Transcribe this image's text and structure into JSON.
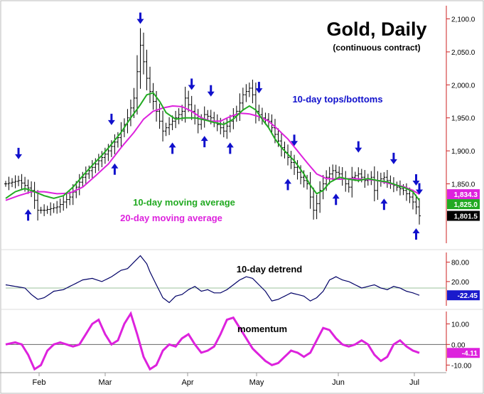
{
  "chart_data": {
    "type": "line",
    "title": "Gold, Daily",
    "subtitle": "(continuous contract)",
    "x_tick_labels": [
      "Feb",
      "Mar",
      "Apr",
      "May",
      "Jun",
      "Jul"
    ],
    "annotations": {
      "tops_bottoms": "10-day tops/bottoms",
      "ma10_label": "10-day moving average",
      "ma20_label": "20-day moving average",
      "detrend_label": "10-day detrend",
      "momentum_label": "momentum"
    },
    "colors": {
      "price_bars": "#000000",
      "ma10": "#22aa22",
      "ma20": "#dd22dd",
      "arrows": "#1010cc",
      "detrend": "#000066",
      "momentum": "#dd22dd",
      "axis": "#cc2222",
      "zero_line": "#9bc29b"
    },
    "price_panel": {
      "ylim": [
        1760,
        2120
      ],
      "y_ticks": [
        {
          "value": 2100,
          "label": "2,100.0"
        },
        {
          "value": 2050,
          "label": "2,050.0"
        },
        {
          "value": 2000,
          "label": "2,000.0"
        },
        {
          "value": 1950,
          "label": "1,950.0"
        },
        {
          "value": 1900,
          "label": "1,900.0"
        },
        {
          "value": 1850,
          "label": "1,850.0"
        }
      ],
      "value_tags": [
        {
          "value": 1834.3,
          "label": "1,834.3",
          "color": "#dd22dd"
        },
        {
          "value": 1825.0,
          "label": "1,825.0",
          "color": "#22aa22"
        },
        {
          "value": 1801.5,
          "label": "1,801.5",
          "color": "#000000"
        }
      ],
      "close_points": [
        [
          0,
          1850
        ],
        [
          4,
          1855
        ],
        [
          8,
          1840
        ],
        [
          10,
          1810
        ],
        [
          12,
          1810
        ],
        [
          16,
          1815
        ],
        [
          20,
          1830
        ],
        [
          24,
          1860
        ],
        [
          28,
          1880
        ],
        [
          32,
          1900
        ],
        [
          35,
          1920
        ],
        [
          38,
          1950
        ],
        [
          40,
          1980
        ],
        [
          42,
          2060
        ],
        [
          44,
          2010
        ],
        [
          45,
          1990
        ],
        [
          47,
          1960
        ],
        [
          49,
          1930
        ],
        [
          51,
          1940
        ],
        [
          53,
          1950
        ],
        [
          55,
          1960
        ],
        [
          56,
          1980
        ],
        [
          58,
          1960
        ],
        [
          60,
          1940
        ],
        [
          62,
          1955
        ],
        [
          64,
          1950
        ],
        [
          66,
          1940
        ],
        [
          68,
          1930
        ],
        [
          70,
          1945
        ],
        [
          72,
          1960
        ],
        [
          74,
          1985
        ],
        [
          76,
          1995
        ],
        [
          77,
          1985
        ],
        [
          78,
          1960
        ],
        [
          80,
          1950
        ],
        [
          82,
          1945
        ],
        [
          84,
          1925
        ],
        [
          86,
          1905
        ],
        [
          88,
          1890
        ],
        [
          90,
          1875
        ],
        [
          92,
          1860
        ],
        [
          94,
          1850
        ],
        [
          95,
          1830
        ],
        [
          96,
          1810
        ],
        [
          97,
          1820
        ],
        [
          98,
          1840
        ],
        [
          100,
          1860
        ],
        [
          102,
          1870
        ],
        [
          104,
          1865
        ],
        [
          106,
          1850
        ],
        [
          107,
          1845
        ],
        [
          108,
          1860
        ],
        [
          110,
          1865
        ],
        [
          112,
          1855
        ],
        [
          114,
          1860
        ],
        [
          115,
          1840
        ],
        [
          116,
          1855
        ],
        [
          118,
          1860
        ],
        [
          120,
          1850
        ],
        [
          122,
          1845
        ],
        [
          124,
          1840
        ],
        [
          126,
          1830
        ],
        [
          128,
          1815
        ],
        [
          129,
          1801.5
        ]
      ],
      "ma10_points": [
        [
          0,
          1828
        ],
        [
          3,
          1838
        ],
        [
          6,
          1843
        ],
        [
          9,
          1838
        ],
        [
          12,
          1832
        ],
        [
          15,
          1828
        ],
        [
          18,
          1832
        ],
        [
          21,
          1845
        ],
        [
          24,
          1862
        ],
        [
          27,
          1878
        ],
        [
          30,
          1893
        ],
        [
          33,
          1910
        ],
        [
          36,
          1928
        ],
        [
          39,
          1950
        ],
        [
          42,
          1970
        ],
        [
          44,
          1985
        ],
        [
          46,
          1988
        ],
        [
          48,
          1975
        ],
        [
          50,
          1958
        ],
        [
          53,
          1948
        ],
        [
          56,
          1950
        ],
        [
          59,
          1950
        ],
        [
          62,
          1947
        ],
        [
          65,
          1943
        ],
        [
          68,
          1940
        ],
        [
          71,
          1948
        ],
        [
          74,
          1962
        ],
        [
          76,
          1968
        ],
        [
          78,
          1962
        ],
        [
          80,
          1948
        ],
        [
          82,
          1935
        ],
        [
          84,
          1918
        ],
        [
          86,
          1905
        ],
        [
          88,
          1895
        ],
        [
          90,
          1885
        ],
        [
          93,
          1865
        ],
        [
          95,
          1848
        ],
        [
          97,
          1835
        ],
        [
          99,
          1840
        ],
        [
          101,
          1852
        ],
        [
          104,
          1860
        ],
        [
          107,
          1857
        ],
        [
          110,
          1855
        ],
        [
          113,
          1858
        ],
        [
          116,
          1855
        ],
        [
          119,
          1853
        ],
        [
          122,
          1848
        ],
        [
          125,
          1843
        ],
        [
          127,
          1838
        ],
        [
          129,
          1825
        ]
      ],
      "ma20_points": [
        [
          0,
          1825
        ],
        [
          4,
          1832
        ],
        [
          8,
          1838
        ],
        [
          12,
          1838
        ],
        [
          16,
          1835
        ],
        [
          20,
          1836
        ],
        [
          24,
          1845
        ],
        [
          28,
          1862
        ],
        [
          32,
          1880
        ],
        [
          36,
          1905
        ],
        [
          40,
          1928
        ],
        [
          43,
          1948
        ],
        [
          46,
          1960
        ],
        [
          49,
          1965
        ],
        [
          52,
          1968
        ],
        [
          55,
          1967
        ],
        [
          58,
          1960
        ],
        [
          61,
          1950
        ],
        [
          64,
          1945
        ],
        [
          67,
          1945
        ],
        [
          70,
          1952
        ],
        [
          73,
          1957
        ],
        [
          76,
          1956
        ],
        [
          79,
          1952
        ],
        [
          82,
          1945
        ],
        [
          85,
          1932
        ],
        [
          88,
          1918
        ],
        [
          91,
          1900
        ],
        [
          94,
          1882
        ],
        [
          97,
          1865
        ],
        [
          100,
          1858
        ],
        [
          104,
          1857
        ],
        [
          108,
          1858
        ],
        [
          112,
          1857
        ],
        [
          116,
          1855
        ],
        [
          120,
          1850
        ],
        [
          124,
          1846
        ],
        [
          127,
          1840
        ],
        [
          129,
          1834.3
        ]
      ],
      "down_arrows_at": [
        4,
        42,
        33,
        58,
        64,
        79,
        90,
        110,
        121,
        128,
        133
      ],
      "up_arrows_at": [
        7,
        34,
        52,
        62,
        70,
        88,
        103,
        118,
        128
      ]
    },
    "detrend_panel": {
      "ylim": [
        -55,
        110
      ],
      "y_ticks": [
        {
          "value": 80,
          "label": "80.00"
        },
        {
          "value": 20,
          "label": "20.00"
        }
      ],
      "value_tag": {
        "value": -22.45,
        "label": "-22.45"
      },
      "zero_value": 0,
      "points": [
        [
          0,
          10
        ],
        [
          3,
          5
        ],
        [
          6,
          0
        ],
        [
          8,
          -20
        ],
        [
          10,
          -35
        ],
        [
          12,
          -30
        ],
        [
          15,
          -10
        ],
        [
          18,
          -5
        ],
        [
          21,
          10
        ],
        [
          24,
          25
        ],
        [
          27,
          30
        ],
        [
          30,
          20
        ],
        [
          33,
          35
        ],
        [
          36,
          55
        ],
        [
          38,
          60
        ],
        [
          40,
          80
        ],
        [
          42,
          100
        ],
        [
          44,
          75
        ],
        [
          45,
          50
        ],
        [
          47,
          10
        ],
        [
          49,
          -30
        ],
        [
          51,
          -45
        ],
        [
          53,
          -25
        ],
        [
          55,
          -20
        ],
        [
          57,
          -5
        ],
        [
          59,
          5
        ],
        [
          61,
          -10
        ],
        [
          63,
          -5
        ],
        [
          65,
          -15
        ],
        [
          67,
          -15
        ],
        [
          69,
          -5
        ],
        [
          71,
          10
        ],
        [
          73,
          25
        ],
        [
          75,
          35
        ],
        [
          77,
          30
        ],
        [
          79,
          10
        ],
        [
          81,
          -10
        ],
        [
          83,
          -40
        ],
        [
          85,
          -35
        ],
        [
          87,
          -25
        ],
        [
          89,
          -15
        ],
        [
          91,
          -20
        ],
        [
          93,
          -25
        ],
        [
          95,
          -40
        ],
        [
          97,
          -30
        ],
        [
          99,
          -10
        ],
        [
          101,
          25
        ],
        [
          103,
          35
        ],
        [
          105,
          25
        ],
        [
          107,
          20
        ],
        [
          109,
          10
        ],
        [
          111,
          0
        ],
        [
          113,
          5
        ],
        [
          115,
          10
        ],
        [
          117,
          0
        ],
        [
          119,
          -5
        ],
        [
          121,
          5
        ],
        [
          123,
          0
        ],
        [
          125,
          -10
        ],
        [
          127,
          -15
        ],
        [
          129,
          -22.45
        ]
      ]
    },
    "momentum_panel": {
      "ylim": [
        -13,
        16
      ],
      "y_ticks": [
        {
          "value": 10,
          "label": "10.00"
        },
        {
          "value": 0,
          "label": "0.00"
        },
        {
          "value": -10,
          "label": "-10.00"
        }
      ],
      "value_tag": {
        "value": -4.11,
        "label": "-4.11"
      },
      "zero_value": 0,
      "points": [
        [
          0,
          0
        ],
        [
          3,
          1
        ],
        [
          5,
          0
        ],
        [
          7,
          -5
        ],
        [
          9,
          -12
        ],
        [
          11,
          -10
        ],
        [
          13,
          -3
        ],
        [
          15,
          0
        ],
        [
          17,
          1
        ],
        [
          19,
          0
        ],
        [
          21,
          -1
        ],
        [
          23,
          0
        ],
        [
          25,
          5
        ],
        [
          27,
          10
        ],
        [
          29,
          12
        ],
        [
          31,
          5
        ],
        [
          33,
          0
        ],
        [
          35,
          2
        ],
        [
          37,
          10
        ],
        [
          39,
          15
        ],
        [
          41,
          5
        ],
        [
          43,
          -6
        ],
        [
          45,
          -12
        ],
        [
          47,
          -10
        ],
        [
          49,
          -3
        ],
        [
          51,
          0
        ],
        [
          53,
          -1
        ],
        [
          55,
          3
        ],
        [
          57,
          5
        ],
        [
          59,
          0
        ],
        [
          61,
          -4
        ],
        [
          63,
          -3
        ],
        [
          65,
          -1
        ],
        [
          67,
          5
        ],
        [
          69,
          12
        ],
        [
          71,
          13
        ],
        [
          73,
          8
        ],
        [
          75,
          3
        ],
        [
          77,
          -2
        ],
        [
          79,
          -5
        ],
        [
          81,
          -8
        ],
        [
          83,
          -10
        ],
        [
          85,
          -9
        ],
        [
          87,
          -6
        ],
        [
          89,
          -3
        ],
        [
          91,
          -4
        ],
        [
          93,
          -6
        ],
        [
          95,
          -4
        ],
        [
          97,
          2
        ],
        [
          99,
          8
        ],
        [
          101,
          7
        ],
        [
          103,
          3
        ],
        [
          105,
          0
        ],
        [
          107,
          -1
        ],
        [
          109,
          0
        ],
        [
          111,
          2
        ],
        [
          113,
          0
        ],
        [
          115,
          -5
        ],
        [
          117,
          -8
        ],
        [
          119,
          -6
        ],
        [
          121,
          0
        ],
        [
          123,
          2
        ],
        [
          125,
          -1
        ],
        [
          127,
          -3
        ],
        [
          129,
          -4.11
        ]
      ]
    }
  }
}
